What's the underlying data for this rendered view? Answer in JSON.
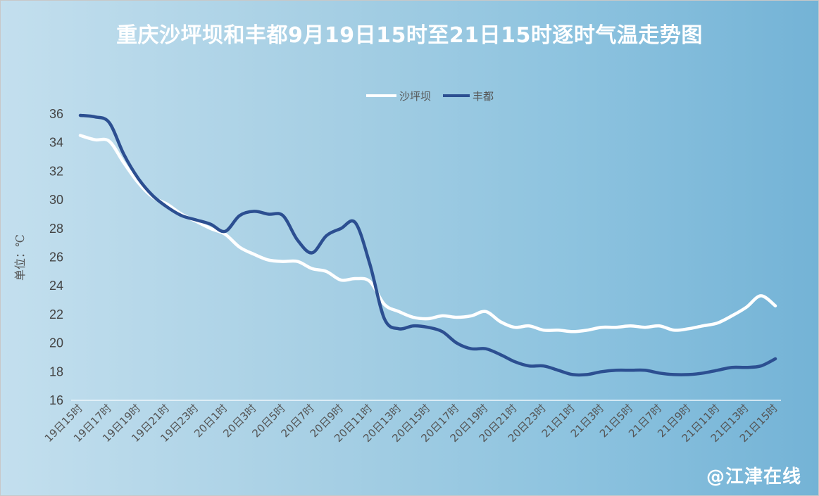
{
  "chart_data": {
    "type": "line",
    "title": "重庆沙坪坝和丰都9月19日15时至21日15时逐时气温走势图",
    "ylabel": "单位：℃",
    "xlabel": "",
    "ylim": [
      16,
      36
    ],
    "yticks": [
      16,
      18,
      20,
      22,
      24,
      26,
      28,
      30,
      32,
      34,
      36
    ],
    "grid": false,
    "legend": "top-center",
    "x": [
      "19日15时",
      "19日16时",
      "19日17时",
      "19日18时",
      "19日19时",
      "19日20时",
      "19日21时",
      "19日22时",
      "19日23时",
      "20日0时",
      "20日1时",
      "20日2时",
      "20日3时",
      "20日4时",
      "20日5时",
      "20日6时",
      "20日7时",
      "20日8时",
      "20日9时",
      "20日10时",
      "20日11时",
      "20日12时",
      "20日13时",
      "20日14时",
      "20日15时",
      "20日16时",
      "20日17时",
      "20日18时",
      "20日19时",
      "20日20时",
      "20日21时",
      "20日22时",
      "20日23时",
      "21日0时",
      "21日1时",
      "21日2时",
      "21日3时",
      "21日4时",
      "21日5时",
      "21日6时",
      "21日7时",
      "21日8时",
      "21日9时",
      "21日10时",
      "21日11时",
      "21日12时",
      "21日13时",
      "21日14时",
      "21日15时"
    ],
    "xticklabels": [
      "19日15时",
      "19日17时",
      "19日19时",
      "19日21时",
      "19日23时",
      "20日1时",
      "20日3时",
      "20日5时",
      "20日7时",
      "20日9时",
      "20日11时",
      "20日13时",
      "20日15时",
      "20日17时",
      "20日19时",
      "20日21时",
      "20日23时",
      "21日1时",
      "21日3时",
      "21日5时",
      "21日7时",
      "21日9时",
      "21日11时",
      "21日13时",
      "21日15时"
    ],
    "series": [
      {
        "name": "沙坪坝",
        "color": "#ffffff",
        "values": [
          34.5,
          34.2,
          34.1,
          32.6,
          31.2,
          30.2,
          29.7,
          29.0,
          28.5,
          28.0,
          27.6,
          26.7,
          26.2,
          25.8,
          25.7,
          25.7,
          25.2,
          25.0,
          24.4,
          24.5,
          24.3,
          22.7,
          22.2,
          21.8,
          21.7,
          21.9,
          21.8,
          21.9,
          22.2,
          21.5,
          21.1,
          21.2,
          20.9,
          20.9,
          20.8,
          20.9,
          21.1,
          21.1,
          21.2,
          21.1,
          21.2,
          20.9,
          21.0,
          21.2,
          21.4,
          21.9,
          22.5,
          23.3,
          22.6
        ]
      },
      {
        "name": "丰都",
        "color": "#2c4f91",
        "values": [
          35.9,
          35.8,
          35.4,
          33.2,
          31.5,
          30.3,
          29.5,
          28.9,
          28.6,
          28.3,
          27.8,
          28.9,
          29.2,
          29.0,
          28.9,
          27.2,
          26.3,
          27.5,
          28.0,
          28.4,
          25.5,
          21.7,
          21.0,
          21.2,
          21.1,
          20.8,
          20.0,
          19.6,
          19.6,
          19.2,
          18.7,
          18.4,
          18.4,
          18.1,
          17.8,
          17.8,
          18.0,
          18.1,
          18.1,
          18.1,
          17.9,
          17.8,
          17.8,
          17.9,
          18.1,
          18.3,
          18.3,
          18.4,
          18.9
        ]
      }
    ]
  },
  "watermark": "@江津在线"
}
